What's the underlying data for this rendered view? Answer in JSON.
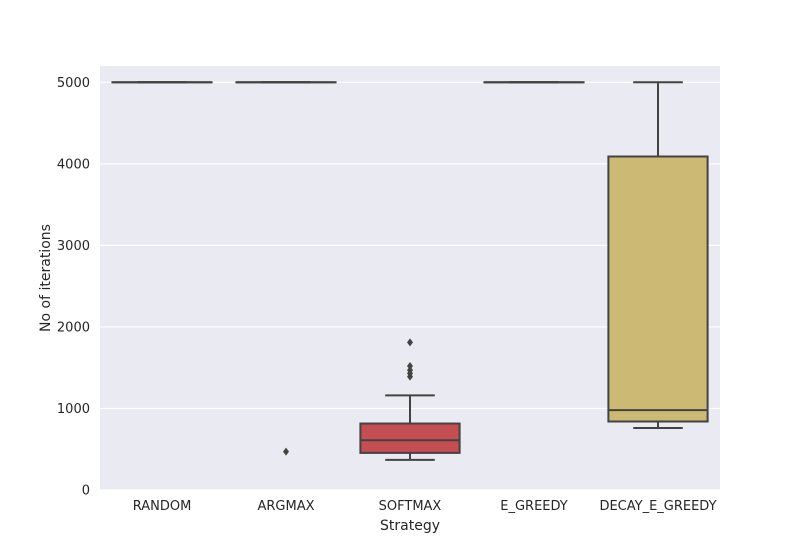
{
  "chart_data": {
    "type": "box",
    "title": "",
    "xlabel": "Strategy",
    "ylabel": "No of iterations",
    "ylim": [
      0,
      5200
    ],
    "yticks": [
      0,
      1000,
      2000,
      3000,
      4000,
      5000
    ],
    "grid": true,
    "categories": [
      "RANDOM",
      "ARGMAX",
      "SOFTMAX",
      "E_GREEDY",
      "DECAY_E_GREEDY"
    ],
    "colors": [
      "#4c72b0",
      "#55a868",
      "#c44e52",
      "#8172b2",
      "#ccb974"
    ],
    "boxes": [
      {
        "category": "RANDOM",
        "whisker_low": 5000,
        "q1": 5000,
        "median": 5000,
        "q3": 5000,
        "whisker_high": 5000,
        "outliers": []
      },
      {
        "category": "ARGMAX",
        "whisker_low": 5000,
        "q1": 5000,
        "median": 5000,
        "q3": 5000,
        "whisker_high": 5000,
        "outliers": [
          470
        ]
      },
      {
        "category": "SOFTMAX",
        "whisker_low": 370,
        "q1": 455,
        "median": 610,
        "q3": 815,
        "whisker_high": 1160,
        "outliers": [
          1390,
          1430,
          1470,
          1520,
          1810
        ]
      },
      {
        "category": "E_GREEDY",
        "whisker_low": 5000,
        "q1": 5000,
        "median": 5000,
        "q3": 5000,
        "whisker_high": 5000,
        "outliers": []
      },
      {
        "category": "DECAY_E_GREEDY",
        "whisker_low": 760,
        "q1": 840,
        "median": 980,
        "q3": 4090,
        "whisker_high": 5000,
        "outliers": []
      }
    ]
  }
}
